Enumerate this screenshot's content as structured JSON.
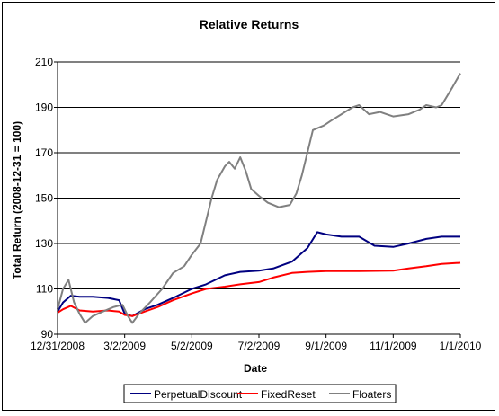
{
  "chart_data": {
    "type": "line",
    "title": "Relative Returns",
    "xlabel": "Date",
    "ylabel": "Total Return (2008-12-31 = 100)",
    "ylim": [
      90,
      210
    ],
    "xlim": [
      "12/31/2008",
      "1/1/2010"
    ],
    "x_ticks": [
      "12/31/2008",
      "3/2/2009",
      "5/2/2009",
      "7/2/2009",
      "9/1/2009",
      "11/1/2009",
      "1/1/2010"
    ],
    "y_ticks": [
      90,
      110,
      130,
      150,
      170,
      190,
      210
    ],
    "grid": "horizontal major gridlines",
    "legend_position": "bottom",
    "series": [
      {
        "name": "PerpetualDiscount",
        "color": "#000080",
        "x": [
          "12/31/2008",
          "1/5/2009",
          "1/12/2009",
          "1/20/2009",
          "2/1/2009",
          "2/15/2009",
          "2/25/2009",
          "3/2/2009",
          "3/9/2009",
          "3/20/2009",
          "4/1/2009",
          "4/15/2009",
          "5/2/2009",
          "5/15/2009",
          "6/1/2009",
          "6/15/2009",
          "7/2/2009",
          "7/15/2009",
          "8/1/2009",
          "8/15/2009",
          "8/24/2009",
          "9/1/2009",
          "9/15/2009",
          "10/1/2009",
          "10/15/2009",
          "11/1/2009",
          "11/15/2009",
          "12/1/2009",
          "12/15/2009",
          "1/1/2010"
        ],
        "values": [
          100,
          104,
          107,
          106.5,
          106.5,
          106,
          105,
          99,
          98,
          101,
          103,
          106,
          110,
          112,
          116,
          117.5,
          118,
          119,
          122,
          128,
          135,
          134,
          133,
          133,
          129,
          128.5,
          130,
          132,
          133,
          133
        ]
      },
      {
        "name": "FixedReset",
        "color": "#FF0000",
        "x": [
          "12/31/2008",
          "1/5/2009",
          "1/12/2009",
          "1/20/2009",
          "2/1/2009",
          "2/15/2009",
          "2/25/2009",
          "3/2/2009",
          "3/9/2009",
          "3/20/2009",
          "4/1/2009",
          "4/15/2009",
          "5/2/2009",
          "5/15/2009",
          "6/1/2009",
          "6/15/2009",
          "7/2/2009",
          "7/15/2009",
          "8/1/2009",
          "8/15/2009",
          "9/1/2009",
          "10/1/2009",
          "11/1/2009",
          "11/15/2009",
          "12/1/2009",
          "12/15/2009",
          "1/1/2010"
        ],
        "values": [
          99.5,
          101,
          102.5,
          100.5,
          100,
          100.5,
          100,
          98.5,
          98,
          100,
          102,
          105,
          108,
          110,
          111,
          112,
          113,
          115,
          117,
          117.5,
          117.8,
          117.8,
          118,
          119,
          120,
          121,
          121.5
        ]
      },
      {
        "name": "Floaters",
        "color": "#808080",
        "x": [
          "12/31/2008",
          "1/5/2009",
          "1/10/2009",
          "1/15/2009",
          "1/20/2009",
          "1/25/2009",
          "2/1/2009",
          "2/10/2009",
          "2/20/2009",
          "2/28/2009",
          "3/5/2009",
          "3/9/2009",
          "3/15/2009",
          "3/25/2009",
          "4/5/2009",
          "4/15/2009",
          "4/25/2009",
          "5/2/2009",
          "5/10/2009",
          "5/15/2009",
          "5/20/2009",
          "5/25/2009",
          "6/1/2009",
          "6/5/2009",
          "6/10/2009",
          "6/15/2009",
          "6/20/2009",
          "6/25/2009",
          "7/2/2009",
          "7/10/2009",
          "7/20/2009",
          "7/30/2009",
          "8/5/2009",
          "8/10/2009",
          "8/20/2009",
          "8/30/2009",
          "9/5/2009",
          "9/15/2009",
          "9/25/2009",
          "10/1/2009",
          "10/10/2009",
          "10/20/2009",
          "11/1/2009",
          "11/15/2009",
          "11/25/2009",
          "12/1/2009",
          "12/10/2009",
          "12/15/2009",
          "12/25/2009",
          "1/1/2010"
        ],
        "values": [
          101,
          110,
          114,
          104,
          99,
          95,
          98,
          100,
          102,
          103,
          98,
          95,
          99,
          104,
          110,
          117,
          120,
          125,
          130,
          140,
          150,
          158,
          164,
          166,
          163,
          168,
          162,
          154,
          151,
          148,
          146,
          147,
          152,
          160,
          180,
          182,
          184,
          187,
          190,
          191,
          187,
          188,
          186,
          187,
          189,
          191,
          190,
          191,
          199,
          205
        ]
      }
    ]
  }
}
